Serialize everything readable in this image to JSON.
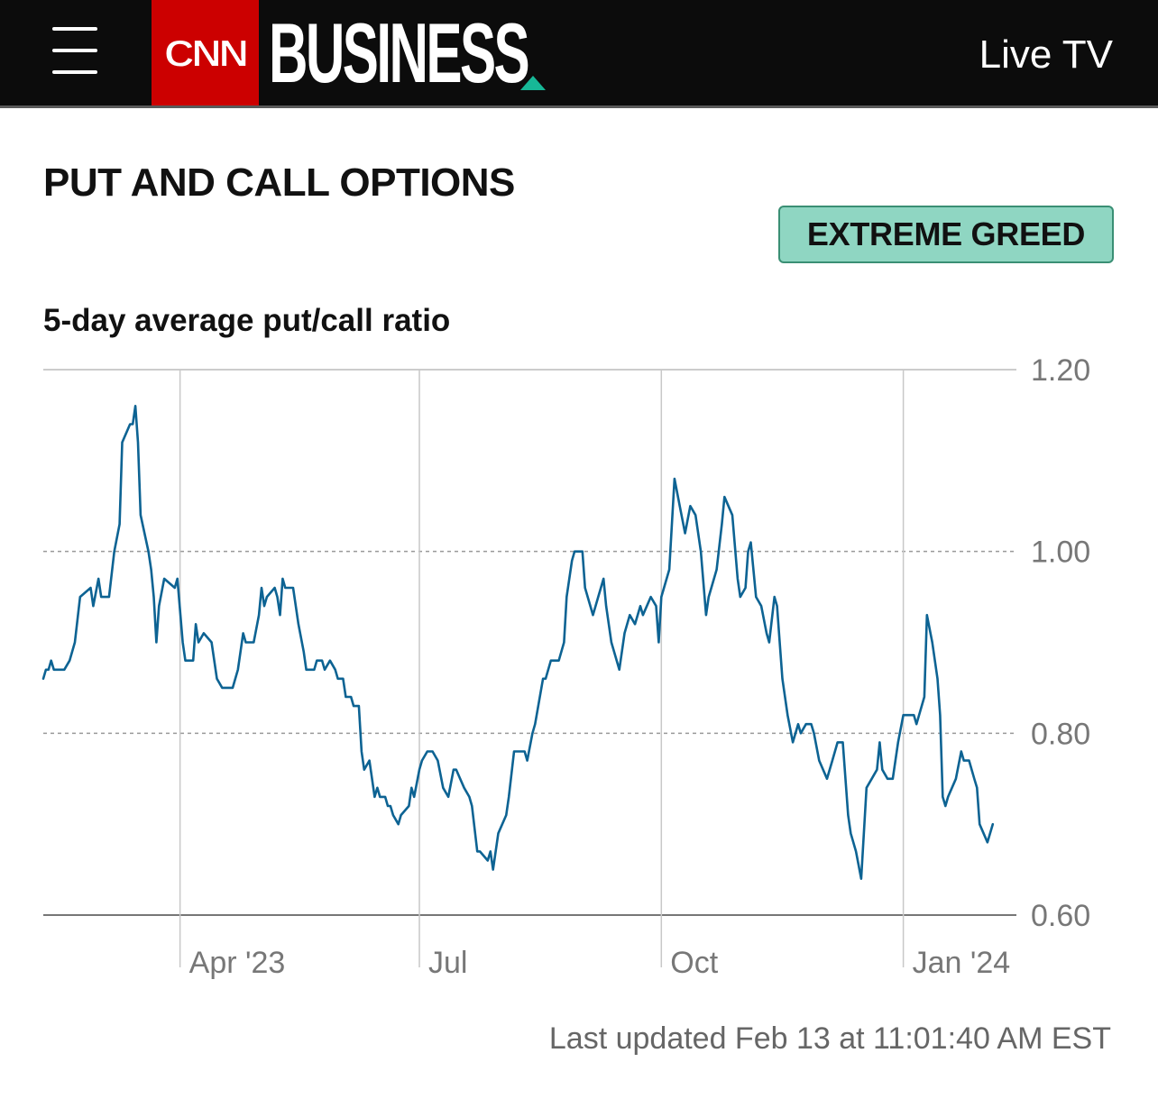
{
  "header": {
    "menu_icon": "hamburger-menu-icon",
    "logo_text": "CNN",
    "section_title": "BUSINESS",
    "live_tv_label": "Live TV",
    "colors": {
      "bar": "#0c0c0c",
      "logo": "#cc0000",
      "accent": "#17b897"
    }
  },
  "page_title": "PUT AND CALL OPTIONS",
  "sentiment_badge": {
    "label": "EXTREME GREED",
    "color": "#8fd6c2"
  },
  "chart_title": "5-day average put/call ratio",
  "footer": {
    "last_updated": "Last updated Feb 13 at 11:01:40 AM EST"
  },
  "chart_data": {
    "type": "line",
    "title": "5-day average put/call ratio",
    "xlabel": "",
    "ylabel": "",
    "ylim": [
      0.6,
      1.2
    ],
    "yticks": [
      "1.20",
      "1.00",
      "0.80",
      "0.60"
    ],
    "ytick_values": [
      1.2,
      1.0,
      0.8,
      0.6
    ],
    "y_axis_side": "right",
    "grid": true,
    "line_color": "#0d6393",
    "x_ticks": [
      {
        "label": "Apr '23",
        "date": "2023-04-01"
      },
      {
        "label": "Jul",
        "date": "2023-07-01"
      },
      {
        "label": "Oct",
        "date": "2023-10-01"
      },
      {
        "label": "Jan '24",
        "date": "2024-01-01"
      }
    ],
    "x_range": [
      "2023-02-08",
      "2024-02-13"
    ],
    "series": [
      {
        "points": [
          [
            "2023-02-08",
            0.86
          ],
          [
            "2023-02-09",
            0.87
          ],
          [
            "2023-02-10",
            0.87
          ],
          [
            "2023-02-11",
            0.88
          ],
          [
            "2023-02-12",
            0.87
          ],
          [
            "2023-02-14",
            0.87
          ],
          [
            "2023-02-16",
            0.87
          ],
          [
            "2023-02-18",
            0.88
          ],
          [
            "2023-02-20",
            0.9
          ],
          [
            "2023-02-22",
            0.95
          ],
          [
            "2023-02-26",
            0.96
          ],
          [
            "2023-02-27",
            0.94
          ],
          [
            "2023-03-01",
            0.97
          ],
          [
            "2023-03-02",
            0.95
          ],
          [
            "2023-03-05",
            0.95
          ],
          [
            "2023-03-07",
            1.0
          ],
          [
            "2023-03-09",
            1.03
          ],
          [
            "2023-03-10",
            1.12
          ],
          [
            "2023-03-13",
            1.14
          ],
          [
            "2023-03-14",
            1.14
          ],
          [
            "2023-03-15",
            1.16
          ],
          [
            "2023-03-16",
            1.12
          ],
          [
            "2023-03-17",
            1.04
          ],
          [
            "2023-03-20",
            1.0
          ],
          [
            "2023-03-21",
            0.98
          ],
          [
            "2023-03-22",
            0.95
          ],
          [
            "2023-03-23",
            0.9
          ],
          [
            "2023-03-24",
            0.94
          ],
          [
            "2023-03-26",
            0.97
          ],
          [
            "2023-03-30",
            0.96
          ],
          [
            "2023-03-31",
            0.97
          ],
          [
            "2023-04-02",
            0.9
          ],
          [
            "2023-04-03",
            0.88
          ],
          [
            "2023-04-06",
            0.88
          ],
          [
            "2023-04-07",
            0.92
          ],
          [
            "2023-04-08",
            0.9
          ],
          [
            "2023-04-10",
            0.91
          ],
          [
            "2023-04-13",
            0.9
          ],
          [
            "2023-04-15",
            0.86
          ],
          [
            "2023-04-17",
            0.85
          ],
          [
            "2023-04-21",
            0.85
          ],
          [
            "2023-04-23",
            0.87
          ],
          [
            "2023-04-25",
            0.91
          ],
          [
            "2023-04-26",
            0.9
          ],
          [
            "2023-04-29",
            0.9
          ],
          [
            "2023-05-01",
            0.93
          ],
          [
            "2023-05-02",
            0.96
          ],
          [
            "2023-05-03",
            0.94
          ],
          [
            "2023-05-04",
            0.95
          ],
          [
            "2023-05-07",
            0.96
          ],
          [
            "2023-05-08",
            0.95
          ],
          [
            "2023-05-09",
            0.93
          ],
          [
            "2023-05-10",
            0.97
          ],
          [
            "2023-05-11",
            0.96
          ],
          [
            "2023-05-14",
            0.96
          ],
          [
            "2023-05-16",
            0.92
          ],
          [
            "2023-05-18",
            0.89
          ],
          [
            "2023-05-19",
            0.87
          ],
          [
            "2023-05-22",
            0.87
          ],
          [
            "2023-05-23",
            0.88
          ],
          [
            "2023-05-25",
            0.88
          ],
          [
            "2023-05-26",
            0.87
          ],
          [
            "2023-05-28",
            0.88
          ],
          [
            "2023-05-30",
            0.87
          ],
          [
            "2023-05-31",
            0.86
          ],
          [
            "2023-06-02",
            0.86
          ],
          [
            "2023-06-03",
            0.84
          ],
          [
            "2023-06-05",
            0.84
          ],
          [
            "2023-06-06",
            0.83
          ],
          [
            "2023-06-08",
            0.83
          ],
          [
            "2023-06-09",
            0.78
          ],
          [
            "2023-06-10",
            0.76
          ],
          [
            "2023-06-12",
            0.77
          ],
          [
            "2023-06-14",
            0.73
          ],
          [
            "2023-06-15",
            0.74
          ],
          [
            "2023-06-16",
            0.73
          ],
          [
            "2023-06-18",
            0.73
          ],
          [
            "2023-06-19",
            0.72
          ],
          [
            "2023-06-20",
            0.72
          ],
          [
            "2023-06-21",
            0.71
          ],
          [
            "2023-06-23",
            0.7
          ],
          [
            "2023-06-24",
            0.71
          ],
          [
            "2023-06-27",
            0.72
          ],
          [
            "2023-06-28",
            0.74
          ],
          [
            "2023-06-29",
            0.73
          ],
          [
            "2023-07-01",
            0.76
          ],
          [
            "2023-07-02",
            0.77
          ],
          [
            "2023-07-04",
            0.78
          ],
          [
            "2023-07-06",
            0.78
          ],
          [
            "2023-07-08",
            0.77
          ],
          [
            "2023-07-10",
            0.74
          ],
          [
            "2023-07-12",
            0.73
          ],
          [
            "2023-07-14",
            0.76
          ],
          [
            "2023-07-15",
            0.76
          ],
          [
            "2023-07-18",
            0.74
          ],
          [
            "2023-07-20",
            0.73
          ],
          [
            "2023-07-21",
            0.72
          ],
          [
            "2023-07-23",
            0.67
          ],
          [
            "2023-07-24",
            0.67
          ],
          [
            "2023-07-27",
            0.66
          ],
          [
            "2023-07-28",
            0.67
          ],
          [
            "2023-07-29",
            0.65
          ],
          [
            "2023-07-30",
            0.67
          ],
          [
            "2023-07-31",
            0.69
          ],
          [
            "2023-08-03",
            0.71
          ],
          [
            "2023-08-04",
            0.73
          ],
          [
            "2023-08-06",
            0.78
          ],
          [
            "2023-08-07",
            0.78
          ],
          [
            "2023-08-10",
            0.78
          ],
          [
            "2023-08-11",
            0.77
          ],
          [
            "2023-08-13",
            0.8
          ],
          [
            "2023-08-14",
            0.81
          ],
          [
            "2023-08-17",
            0.86
          ],
          [
            "2023-08-18",
            0.86
          ],
          [
            "2023-08-20",
            0.88
          ],
          [
            "2023-08-23",
            0.88
          ],
          [
            "2023-08-25",
            0.9
          ],
          [
            "2023-08-26",
            0.95
          ],
          [
            "2023-08-28",
            0.99
          ],
          [
            "2023-08-29",
            1.0
          ],
          [
            "2023-09-01",
            1.0
          ],
          [
            "2023-09-02",
            0.96
          ],
          [
            "2023-09-05",
            0.93
          ],
          [
            "2023-09-07",
            0.95
          ],
          [
            "2023-09-09",
            0.97
          ],
          [
            "2023-09-10",
            0.94
          ],
          [
            "2023-09-12",
            0.9
          ],
          [
            "2023-09-15",
            0.87
          ],
          [
            "2023-09-17",
            0.91
          ],
          [
            "2023-09-19",
            0.93
          ],
          [
            "2023-09-21",
            0.92
          ],
          [
            "2023-09-23",
            0.94
          ],
          [
            "2023-09-24",
            0.93
          ],
          [
            "2023-09-27",
            0.95
          ],
          [
            "2023-09-29",
            0.94
          ],
          [
            "2023-09-30",
            0.9
          ],
          [
            "2023-10-01",
            0.95
          ],
          [
            "2023-10-04",
            0.98
          ],
          [
            "2023-10-06",
            1.08
          ],
          [
            "2023-10-08",
            1.05
          ],
          [
            "2023-10-10",
            1.02
          ],
          [
            "2023-10-12",
            1.05
          ],
          [
            "2023-10-14",
            1.04
          ],
          [
            "2023-10-16",
            1.0
          ],
          [
            "2023-10-18",
            0.93
          ],
          [
            "2023-10-19",
            0.95
          ],
          [
            "2023-10-22",
            0.98
          ],
          [
            "2023-10-24",
            1.03
          ],
          [
            "2023-10-25",
            1.06
          ],
          [
            "2023-10-28",
            1.04
          ],
          [
            "2023-10-30",
            0.97
          ],
          [
            "2023-10-31",
            0.95
          ],
          [
            "2023-11-02",
            0.96
          ],
          [
            "2023-11-03",
            1.0
          ],
          [
            "2023-11-04",
            1.01
          ],
          [
            "2023-11-06",
            0.95
          ],
          [
            "2023-11-08",
            0.94
          ],
          [
            "2023-11-10",
            0.91
          ],
          [
            "2023-11-11",
            0.9
          ],
          [
            "2023-11-13",
            0.95
          ],
          [
            "2023-11-14",
            0.94
          ],
          [
            "2023-11-16",
            0.86
          ],
          [
            "2023-11-18",
            0.82
          ],
          [
            "2023-11-20",
            0.79
          ],
          [
            "2023-11-22",
            0.81
          ],
          [
            "2023-11-23",
            0.8
          ],
          [
            "2023-11-25",
            0.81
          ],
          [
            "2023-11-27",
            0.81
          ],
          [
            "2023-11-28",
            0.8
          ],
          [
            "2023-11-30",
            0.77
          ],
          [
            "2023-12-03",
            0.75
          ],
          [
            "2023-12-05",
            0.77
          ],
          [
            "2023-12-07",
            0.79
          ],
          [
            "2023-12-09",
            0.79
          ],
          [
            "2023-12-11",
            0.71
          ],
          [
            "2023-12-12",
            0.69
          ],
          [
            "2023-12-14",
            0.67
          ],
          [
            "2023-12-16",
            0.64
          ],
          [
            "2023-12-18",
            0.74
          ],
          [
            "2023-12-20",
            0.75
          ],
          [
            "2023-12-22",
            0.76
          ],
          [
            "2023-12-23",
            0.79
          ],
          [
            "2023-12-24",
            0.76
          ],
          [
            "2023-12-26",
            0.75
          ],
          [
            "2023-12-28",
            0.75
          ],
          [
            "2023-12-30",
            0.79
          ],
          [
            "2024-01-01",
            0.82
          ],
          [
            "2024-01-03",
            0.82
          ],
          [
            "2024-01-05",
            0.82
          ],
          [
            "2024-01-06",
            0.81
          ],
          [
            "2024-01-09",
            0.84
          ],
          [
            "2024-01-10",
            0.93
          ],
          [
            "2024-01-12",
            0.9
          ],
          [
            "2024-01-14",
            0.86
          ],
          [
            "2024-01-15",
            0.82
          ],
          [
            "2024-01-16",
            0.73
          ],
          [
            "2024-01-17",
            0.72
          ],
          [
            "2024-01-18",
            0.73
          ],
          [
            "2024-01-21",
            0.75
          ],
          [
            "2024-01-23",
            0.78
          ],
          [
            "2024-01-24",
            0.77
          ],
          [
            "2024-01-26",
            0.77
          ],
          [
            "2024-01-28",
            0.75
          ],
          [
            "2024-01-29",
            0.74
          ],
          [
            "2024-01-30",
            0.7
          ],
          [
            "2024-02-02",
            0.68
          ],
          [
            "2024-02-04",
            0.7
          ]
        ]
      }
    ]
  }
}
